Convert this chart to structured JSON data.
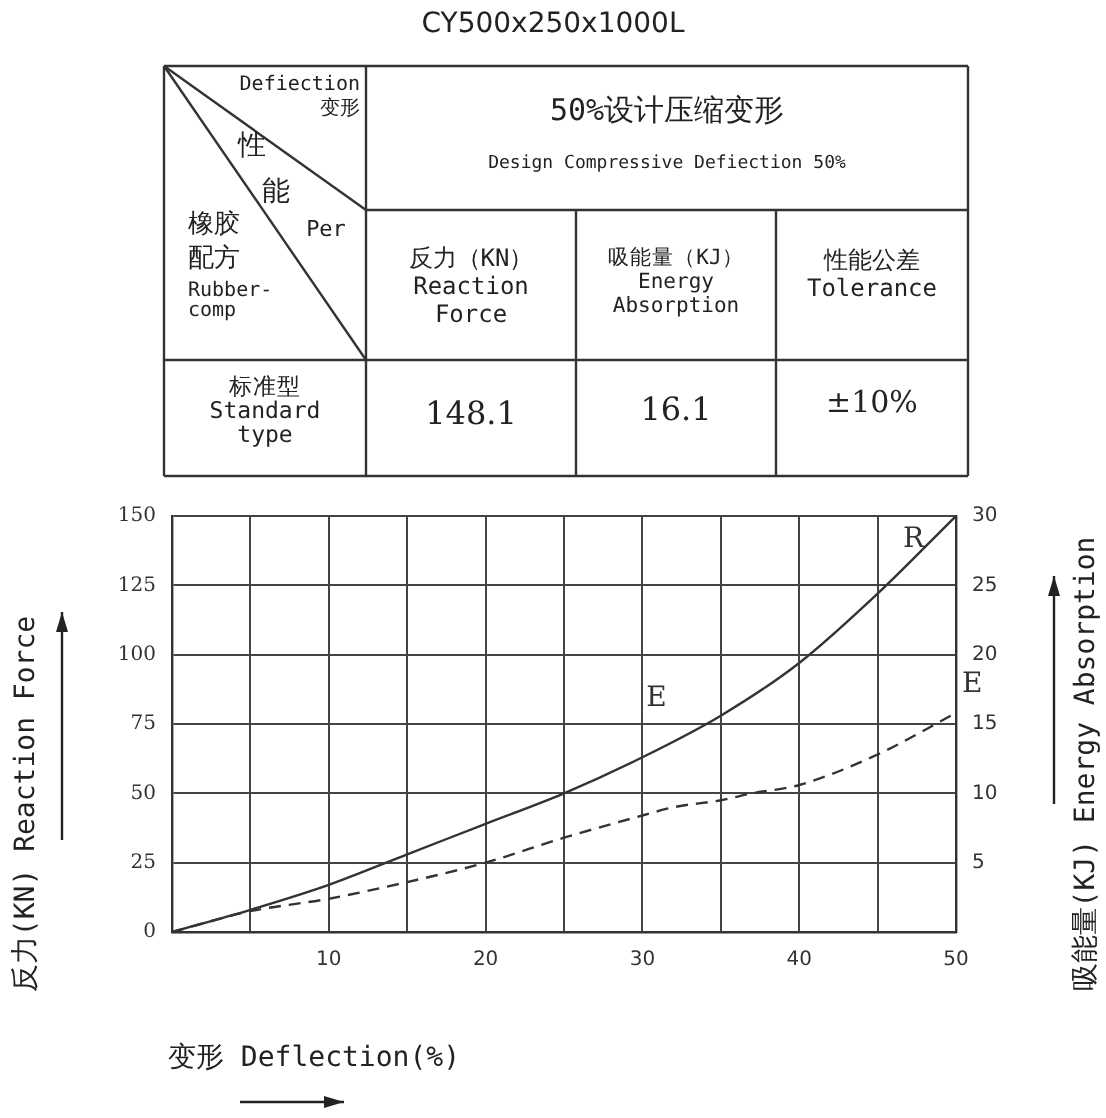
{
  "chart_data": [
    {
      "type": "other",
      "title": "CY500x250x1000L",
      "annotations": [
        "Defiection\n变形",
        "性",
        "能",
        "Per",
        "橡胶",
        "配方",
        "Rubber-\ncomp",
        "50%设计压缩变形",
        "Design Compressive Defiection 50%",
        "反力（KN）\nReaction\nForce",
        "吸能量（KJ）\nEnergy\nAbsorption",
        "性能公差\nTolerance",
        "标准型\nStandard\ntype",
        "148.1",
        "16.1",
        "±10%"
      ]
    },
    {
      "type": "line",
      "xlabel": "变形 Deflection(%)",
      "ylabel": "反力(KN) Reaction Force",
      "y2label": "吸能量(KJ) Energy Absorption",
      "xlim": [
        0,
        50
      ],
      "xticks": [
        {
          "value": 0,
          "label": null
        },
        {
          "value": 5,
          "label": null
        },
        10,
        {
          "value": 15,
          "label": null
        },
        20,
        {
          "value": 25,
          "label": null
        },
        30,
        {
          "value": 35,
          "label": null
        },
        40,
        {
          "value": 45,
          "label": null
        },
        50
      ],
      "ylim": [
        0,
        150
      ],
      "yticks": [
        0,
        25,
        50,
        75,
        100,
        125,
        150
      ],
      "y2lim": [
        0,
        30
      ],
      "y2ticks": [
        5,
        10,
        15,
        20,
        25,
        30
      ],
      "grid": true,
      "legend": false,
      "marker": "none",
      "series": [
        {
          "name": "R",
          "color": "#333333",
          "line_style": "solid",
          "x": [
            0,
            5,
            10,
            15,
            20,
            25,
            30,
            35,
            40,
            45,
            50
          ],
          "values": [
            0,
            8,
            17,
            28,
            39,
            50,
            63,
            78,
            97,
            122,
            150
          ]
        },
        {
          "name": "E",
          "color": "#333333",
          "line_style": "dashed",
          "axis": "y2",
          "x": [
            0,
            5,
            10,
            15,
            20,
            25,
            30,
            32,
            35,
            37,
            40,
            45,
            50
          ],
          "values": [
            0,
            1.5,
            2.4,
            3.6,
            5,
            6.8,
            8.4,
            9,
            9.5,
            10,
            10.6,
            12.8,
            15.8
          ]
        }
      ],
      "annotations": [
        "E"
      ]
    }
  ]
}
